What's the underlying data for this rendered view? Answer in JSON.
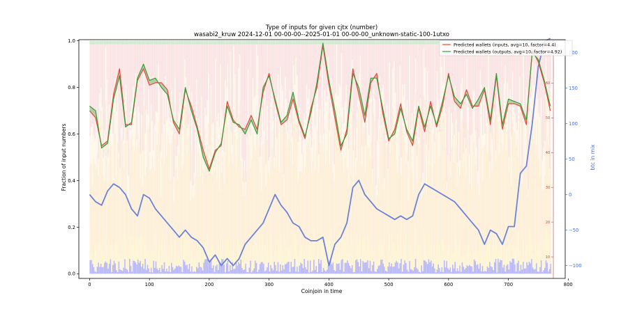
{
  "chart_data": {
    "type": "line",
    "title": "Type of inputs for given cjtx (number)",
    "subtitle": "wasabi2_kruw 2024-12-01 00-00-00--2025-01-01 00-00-00_unknown-static-100-1utxo",
    "xlabel": "Coinjoin in time",
    "ylabel": "Fraction of input numbers",
    "y2label": "btc in mix",
    "xlim": [
      -18,
      795
    ],
    "ylim": [
      -0.02,
      1.005
    ],
    "y2lim": [
      -118,
      218
    ],
    "x_ticks": [
      0,
      100,
      200,
      300,
      400,
      500,
      600,
      700,
      800
    ],
    "y_ticks": [
      0.0,
      0.2,
      0.4,
      0.6,
      0.8,
      1.0
    ],
    "y2_ticks": [
      -100,
      -50,
      0,
      50,
      100,
      150,
      200
    ],
    "y3_ticks": [
      10,
      20,
      30,
      40,
      50,
      60
    ],
    "y3lim": [
      3.8,
      72.5
    ],
    "legend_position": "top-right",
    "legend": [
      "Predicted wallets (inputs, avg=10, factor=4.4)",
      "Predicted wallets (outputs, avg=10, factor=4.92)"
    ],
    "colors": {
      "inputs_line": "#e8463a",
      "outputs_line": "#3a9a3a",
      "btc_line": "#6b82d8",
      "fill_red": "#f4c2c2",
      "fill_orange": "#f9d28c",
      "fill_yellow": "#fbe6a0",
      "fill_blue": "#7b7bf0",
      "fill_green": "#a8dca8",
      "y3_axis": "#d43a2a",
      "y2_axis": "#4a6fd6"
    },
    "series": [
      {
        "name": "Predicted wallets (inputs, avg=10, factor=4.4)",
        "x": [
          0,
          10,
          20,
          30,
          40,
          50,
          60,
          70,
          80,
          90,
          100,
          110,
          120,
          130,
          140,
          150,
          160,
          170,
          180,
          190,
          200,
          210,
          220,
          230,
          240,
          250,
          260,
          270,
          280,
          290,
          300,
          310,
          320,
          330,
          340,
          350,
          360,
          370,
          380,
          390,
          400,
          410,
          420,
          430,
          440,
          450,
          460,
          470,
          480,
          490,
          500,
          510,
          520,
          530,
          540,
          550,
          560,
          570,
          580,
          590,
          600,
          610,
          620,
          630,
          640,
          650,
          660,
          670,
          680,
          690,
          700,
          710,
          720,
          730,
          740,
          750,
          760,
          770
        ],
        "values": [
          0.7,
          0.67,
          0.55,
          0.57,
          0.77,
          0.88,
          0.64,
          0.64,
          0.83,
          0.88,
          0.81,
          0.82,
          0.82,
          0.79,
          0.65,
          0.6,
          0.79,
          0.72,
          0.63,
          0.53,
          0.45,
          0.53,
          0.55,
          0.74,
          0.66,
          0.63,
          0.62,
          0.68,
          0.62,
          0.78,
          0.86,
          0.74,
          0.64,
          0.66,
          0.75,
          0.65,
          0.58,
          0.71,
          0.8,
          0.98,
          0.81,
          0.67,
          0.53,
          0.62,
          0.88,
          0.77,
          0.65,
          0.82,
          0.86,
          0.69,
          0.57,
          0.62,
          0.73,
          0.61,
          0.55,
          0.71,
          0.61,
          0.74,
          0.63,
          0.72,
          0.86,
          0.74,
          0.71,
          0.79,
          0.72,
          0.72,
          0.79,
          0.64,
          0.85,
          0.62,
          0.73,
          0.73,
          0.72,
          0.64,
          0.96,
          0.91,
          0.82,
          0.7
        ]
      },
      {
        "name": "Predicted wallets (outputs, avg=10, factor=4.92)",
        "x": [
          0,
          10,
          20,
          30,
          40,
          50,
          60,
          70,
          80,
          90,
          100,
          110,
          120,
          130,
          140,
          150,
          160,
          170,
          180,
          190,
          200,
          210,
          220,
          230,
          240,
          250,
          260,
          270,
          280,
          290,
          300,
          310,
          320,
          330,
          340,
          350,
          360,
          370,
          380,
          390,
          400,
          410,
          420,
          430,
          440,
          450,
          460,
          470,
          480,
          490,
          500,
          510,
          520,
          530,
          540,
          550,
          560,
          570,
          580,
          590,
          600,
          610,
          620,
          630,
          640,
          650,
          660,
          670,
          680,
          690,
          700,
          710,
          720,
          730,
          740,
          750,
          760,
          770
        ],
        "values": [
          0.72,
          0.7,
          0.54,
          0.56,
          0.75,
          0.85,
          0.63,
          0.65,
          0.84,
          0.9,
          0.83,
          0.84,
          0.8,
          0.77,
          0.66,
          0.62,
          0.8,
          0.7,
          0.62,
          0.5,
          0.44,
          0.52,
          0.56,
          0.72,
          0.65,
          0.64,
          0.6,
          0.66,
          0.6,
          0.8,
          0.85,
          0.75,
          0.65,
          0.68,
          0.78,
          0.66,
          0.59,
          0.69,
          0.82,
          0.99,
          0.83,
          0.7,
          0.55,
          0.6,
          0.86,
          0.8,
          0.68,
          0.84,
          0.84,
          0.71,
          0.58,
          0.6,
          0.71,
          0.62,
          0.57,
          0.72,
          0.63,
          0.72,
          0.64,
          0.74,
          0.85,
          0.76,
          0.73,
          0.77,
          0.71,
          0.75,
          0.8,
          0.66,
          0.86,
          0.64,
          0.75,
          0.74,
          0.73,
          0.66,
          0.95,
          0.92,
          0.83,
          0.72
        ]
      },
      {
        "name": "btc in mix",
        "axis": "right",
        "x": [
          0,
          10,
          20,
          30,
          40,
          50,
          60,
          70,
          80,
          90,
          100,
          110,
          120,
          130,
          140,
          150,
          160,
          170,
          180,
          190,
          200,
          210,
          220,
          230,
          240,
          250,
          260,
          270,
          280,
          290,
          300,
          310,
          320,
          330,
          340,
          350,
          360,
          370,
          380,
          390,
          400,
          410,
          420,
          430,
          440,
          450,
          460,
          470,
          480,
          490,
          500,
          510,
          520,
          530,
          540,
          550,
          560,
          570,
          580,
          590,
          600,
          610,
          620,
          630,
          640,
          650,
          660,
          670,
          680,
          690,
          700,
          710,
          720,
          730,
          740,
          750,
          760,
          770
        ],
        "values": [
          0,
          -10,
          -15,
          5,
          15,
          10,
          0,
          -20,
          -30,
          0,
          -5,
          -20,
          -30,
          -40,
          -50,
          -60,
          -50,
          -60,
          -65,
          -75,
          -95,
          -85,
          -100,
          -90,
          -100,
          -90,
          -70,
          -60,
          -50,
          -40,
          -20,
          0,
          -15,
          -25,
          -40,
          -45,
          -60,
          -65,
          -65,
          -60,
          -100,
          -70,
          -60,
          -40,
          10,
          20,
          0,
          -10,
          -20,
          -25,
          -30,
          -35,
          -30,
          -35,
          -30,
          0,
          15,
          10,
          5,
          0,
          -5,
          -10,
          -20,
          -30,
          -40,
          -50,
          -70,
          -50,
          -55,
          -70,
          -45,
          -45,
          30,
          40,
          100,
          180,
          215,
          220
        ]
      }
    ]
  }
}
